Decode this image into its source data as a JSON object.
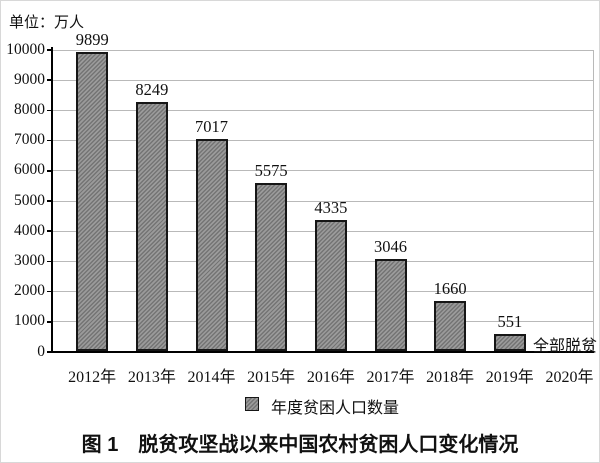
{
  "unit_label": "单位：万人",
  "chart_data": {
    "type": "bar",
    "categories": [
      "2012年",
      "2013年",
      "2014年",
      "2015年",
      "2016年",
      "2017年",
      "2018年",
      "2019年",
      "2020年"
    ],
    "values": [
      9899,
      8249,
      7017,
      5575,
      4335,
      3046,
      1660,
      551,
      null
    ],
    "title": "",
    "xlabel": "",
    "ylabel": "单位：万人",
    "ylim": [
      0,
      10000
    ],
    "ytick_step": 1000,
    "yticks": [
      0,
      1000,
      2000,
      3000,
      4000,
      5000,
      6000,
      7000,
      8000,
      9000,
      10000
    ],
    "grid": true,
    "legend": [
      "年度贫困人口数量"
    ],
    "legend_position": "bottom",
    "annotation_2020": "全部脱贫",
    "bar_style": "diagonal-hatch"
  },
  "caption": "图 1　脱贫攻坚战以来中国农村贫困人口变化情况",
  "colors": {
    "bar_fill_light": "#9b9b9b",
    "bar_fill_dark": "#747474",
    "bar_border": "#161616",
    "grid": "#b9b9b9",
    "axis": "#000000",
    "text": "#111111",
    "background": "#ffffff"
  }
}
